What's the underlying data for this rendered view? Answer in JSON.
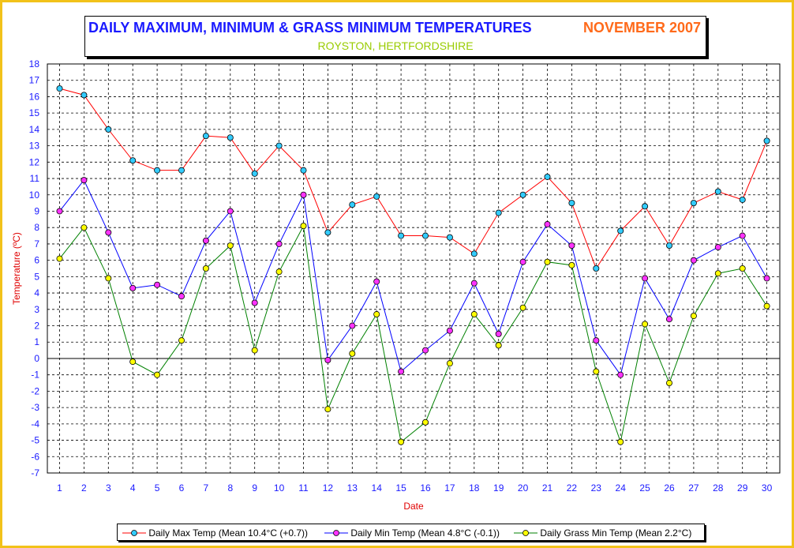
{
  "chart_data": {
    "type": "line",
    "title": "DAILY MAXIMUM, MINIMUM & GRASS MINIMUM TEMPERATURES",
    "title_period": "NOVEMBER 2007",
    "subtitle": "ROYSTON, HERTFORDSHIRE",
    "xlabel": "Date",
    "ylabel": "Temperature (ºC)",
    "ylim": [
      -7,
      18
    ],
    "grid": true,
    "legend_position": "bottom",
    "x": [
      1,
      2,
      3,
      4,
      5,
      6,
      7,
      8,
      9,
      10,
      11,
      12,
      13,
      14,
      15,
      16,
      17,
      18,
      19,
      20,
      21,
      22,
      23,
      24,
      25,
      26,
      27,
      28,
      29,
      30
    ],
    "series": [
      {
        "name": "Daily Max Temp (Mean 10.4°C (+0.7))",
        "line_color": "#ff0000",
        "marker_color": "#33ccff",
        "values": [
          16.5,
          16.1,
          14.0,
          12.1,
          11.5,
          11.5,
          13.6,
          13.5,
          11.3,
          13.0,
          11.5,
          7.7,
          9.4,
          9.9,
          7.5,
          7.5,
          7.4,
          6.4,
          8.9,
          10.0,
          11.1,
          9.5,
          5.5,
          7.8,
          9.3,
          6.9,
          9.5,
          10.2,
          9.7,
          13.3
        ]
      },
      {
        "name": "Daily Min Temp (Mean 4.8°C (-0.1))",
        "line_color": "#0000ff",
        "marker_color": "#ff33ff",
        "values": [
          9.0,
          10.9,
          7.7,
          4.3,
          4.5,
          3.8,
          7.2,
          9.0,
          3.4,
          7.0,
          10.0,
          -0.1,
          2.0,
          4.7,
          -0.8,
          0.5,
          1.7,
          4.6,
          1.5,
          5.9,
          8.2,
          6.9,
          1.1,
          -1.0,
          4.9,
          2.4,
          6.0,
          6.8,
          7.5,
          4.9
        ]
      },
      {
        "name": "Daily Grass Min Temp (Mean 2.2°C)",
        "line_color": "#008000",
        "marker_color": "#ffff00",
        "values": [
          6.1,
          8.0,
          4.9,
          -0.2,
          -1.0,
          1.1,
          5.5,
          6.9,
          0.5,
          5.3,
          8.1,
          -3.1,
          0.3,
          2.7,
          -5.1,
          -3.9,
          -0.3,
          2.7,
          0.8,
          3.1,
          5.9,
          5.7,
          -0.8,
          -5.1,
          2.1,
          -1.5,
          2.6,
          5.2,
          5.5,
          3.2
        ]
      }
    ]
  }
}
